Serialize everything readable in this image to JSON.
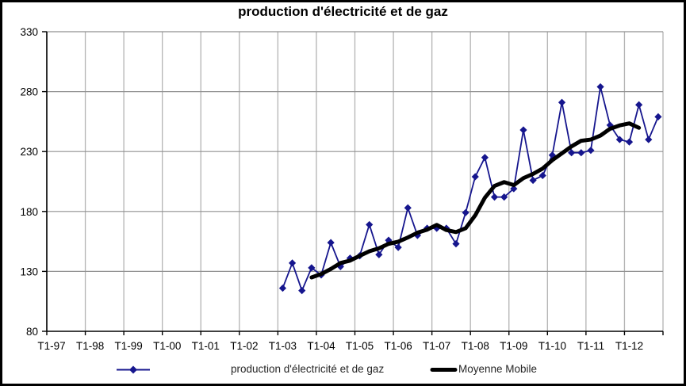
{
  "window": {
    "background": "#ffffff",
    "border_color": "#000000"
  },
  "chart_data": {
    "type": "line",
    "title": "production d'électricité et de gaz",
    "xlabel": "",
    "ylabel": "",
    "ylim": [
      80,
      330
    ],
    "y_ticks": [
      80,
      130,
      180,
      230,
      280,
      330
    ],
    "grid": true,
    "legend_position": "bottom",
    "x_total_quarters": 64,
    "x_axis_tick_labels": [
      "T1-97",
      "T1-98",
      "T1-99",
      "T1-00",
      "T1-01",
      "T1-02",
      "T1-03",
      "T1-04",
      "T1-05",
      "T1-06",
      "T1-07",
      "T1-08",
      "T1-09",
      "T1-10",
      "T1-11",
      "T1-12"
    ],
    "categories": [
      "T1-03",
      "T2-03",
      "T3-03",
      "T4-03",
      "T1-04",
      "T2-04",
      "T3-04",
      "T4-04",
      "T1-05",
      "T2-05",
      "T3-05",
      "T4-05",
      "T1-06",
      "T2-06",
      "T3-06",
      "T4-06",
      "T1-07",
      "T2-07",
      "T3-07",
      "T4-07",
      "T1-08",
      "T2-08",
      "T3-08",
      "T4-08",
      "T1-09",
      "T2-09",
      "T3-09",
      "T4-09",
      "T1-10",
      "T2-10",
      "T3-10",
      "T4-10",
      "T1-11",
      "T2-11",
      "T3-11",
      "T4-11",
      "T1-12",
      "T2-12",
      "T3-12",
      "T4-12"
    ],
    "series": [
      {
        "name": "production d'électricité et de gaz",
        "marker": "diamond",
        "color": "#16168E",
        "start_quarter_index": 24,
        "values": [
          116,
          137,
          114,
          133,
          127,
          154,
          134,
          141,
          143,
          169,
          144,
          156,
          150,
          183,
          160,
          166,
          166,
          166,
          153,
          179,
          209,
          225,
          192,
          192,
          199,
          248,
          206,
          210,
          227,
          271,
          229,
          229,
          231,
          284,
          252,
          240,
          238,
          269,
          240,
          259
        ]
      },
      {
        "name": "Moyenne Mobile",
        "marker": "none",
        "color": "#000000",
        "moving_average_period": 4,
        "start_quarter_index": 27,
        "values": [
          125,
          127.8,
          132,
          137,
          139,
          143,
          146.8,
          149.3,
          153,
          154.8,
          158.3,
          162.3,
          164.8,
          168.8,
          164.5,
          162.8,
          166,
          176.8,
          191.5,
          201.3,
          204.5,
          202,
          207.8,
          211.3,
          215.8,
          222.8,
          228.5,
          234.3,
          239,
          240,
          243.3,
          249,
          251.8,
          253.5,
          249.8
        ]
      }
    ],
    "colors": {
      "vertical_grid": "#b3b3b3",
      "horizontal_grid": "#909090",
      "axis": "#000000",
      "tick_text": "#000000"
    }
  }
}
